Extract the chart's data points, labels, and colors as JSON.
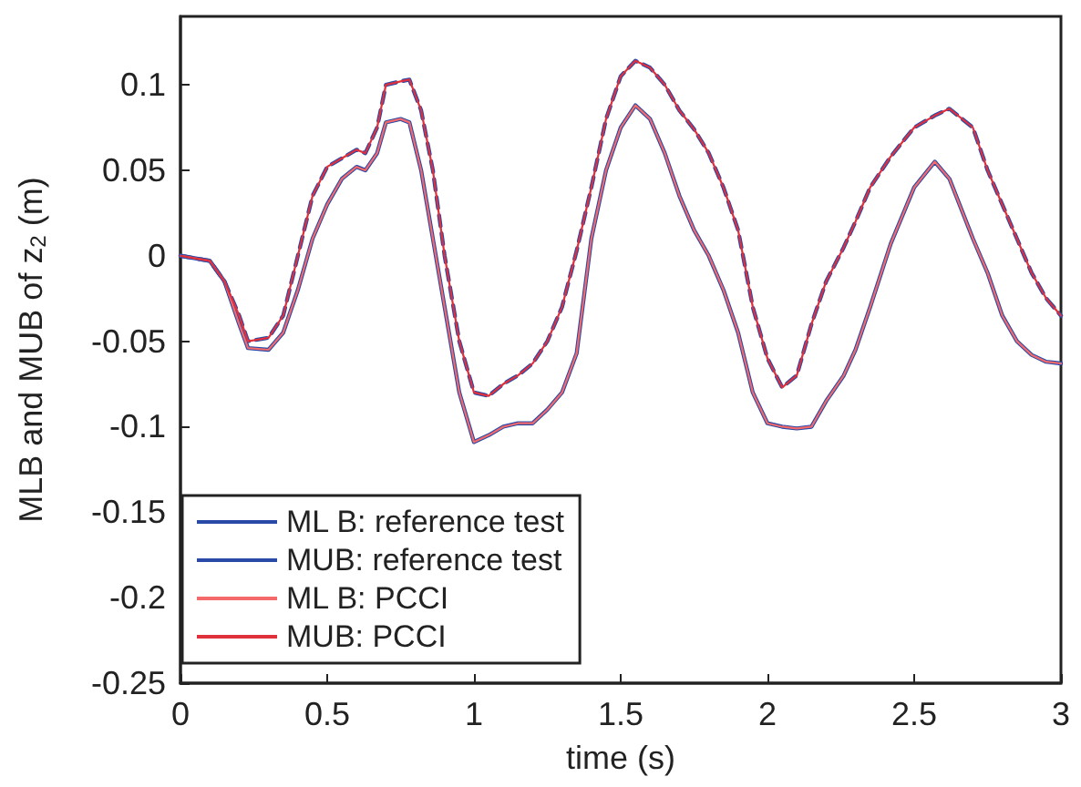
{
  "chart_data": {
    "type": "line",
    "xlabel": "time (s)",
    "ylabel": "MLB and MUB of z$_{2}$ (m)",
    "xlim": [
      0,
      3
    ],
    "xticks": [
      0,
      0.5,
      1,
      1.5,
      2,
      2.5,
      3
    ],
    "ylim": [
      -0.25,
      0.14
    ],
    "yticks": [
      -0.25,
      -0.2,
      -0.15,
      -0.1,
      -0.05,
      0,
      0.05,
      0.1
    ],
    "grid": false,
    "legend": "bottom left",
    "marker": "none",
    "x": [
      0,
      0.1,
      0.15,
      0.2,
      0.23,
      0.3,
      0.35,
      0.4,
      0.45,
      0.5,
      0.55,
      0.6,
      0.63,
      0.67,
      0.7,
      0.75,
      0.78,
      0.82,
      0.86,
      0.9,
      0.95,
      1.0,
      1.05,
      1.1,
      1.15,
      1.2,
      1.25,
      1.3,
      1.35,
      1.4,
      1.45,
      1.5,
      1.55,
      1.6,
      1.65,
      1.7,
      1.75,
      1.8,
      1.85,
      1.9,
      1.95,
      2.0,
      2.05,
      2.1,
      2.15,
      2.2,
      2.26,
      2.3,
      2.35,
      2.42,
      2.5,
      2.57,
      2.62,
      2.7,
      2.75,
      2.8,
      2.85,
      2.9,
      2.95,
      3.0
    ],
    "series": [
      {
        "name": "ML B: reference test",
        "color": "#2a4aa8",
        "line_style": "solid",
        "values": [
          0,
          -0.003,
          -0.015,
          -0.04,
          -0.054,
          -0.055,
          -0.045,
          -0.02,
          0.01,
          0.03,
          0.045,
          0.052,
          0.05,
          0.06,
          0.078,
          0.08,
          0.078,
          0.05,
          0.01,
          -0.03,
          -0.08,
          -0.109,
          -0.105,
          -0.1,
          -0.098,
          -0.098,
          -0.09,
          -0.08,
          -0.057,
          0.01,
          0.05,
          0.075,
          0.088,
          0.08,
          0.06,
          0.035,
          0.015,
          0.0,
          -0.02,
          -0.045,
          -0.08,
          -0.098,
          -0.1,
          -0.101,
          -0.1,
          -0.085,
          -0.07,
          -0.055,
          -0.03,
          0.007,
          0.04,
          0.055,
          0.045,
          0.01,
          -0.01,
          -0.035,
          -0.05,
          -0.058,
          -0.062,
          -0.063
        ]
      },
      {
        "name": "MUB: reference test",
        "color": "#2a4aa8",
        "line_style": "dashed",
        "values": [
          0,
          -0.003,
          -0.015,
          -0.035,
          -0.05,
          -0.048,
          -0.035,
          0.0,
          0.035,
          0.052,
          0.057,
          0.062,
          0.06,
          0.075,
          0.1,
          0.102,
          0.103,
          0.085,
          0.05,
          0.0,
          -0.05,
          -0.08,
          -0.082,
          -0.075,
          -0.07,
          -0.063,
          -0.05,
          -0.03,
          0.003,
          0.04,
          0.08,
          0.105,
          0.114,
          0.11,
          0.1,
          0.085,
          0.074,
          0.06,
          0.04,
          0.015,
          -0.03,
          -0.06,
          -0.077,
          -0.07,
          -0.04,
          -0.015,
          0.005,
          0.02,
          0.04,
          0.058,
          0.075,
          0.082,
          0.086,
          0.075,
          0.05,
          0.03,
          0.01,
          -0.01,
          -0.025,
          -0.035
        ]
      },
      {
        "name": "ML B: PCCI",
        "color": "#f46a6a",
        "line_style": "solid",
        "values": [
          0,
          -0.003,
          -0.015,
          -0.04,
          -0.054,
          -0.055,
          -0.045,
          -0.02,
          0.01,
          0.03,
          0.045,
          0.052,
          0.05,
          0.06,
          0.078,
          0.08,
          0.078,
          0.05,
          0.01,
          -0.03,
          -0.08,
          -0.109,
          -0.105,
          -0.1,
          -0.098,
          -0.098,
          -0.09,
          -0.08,
          -0.057,
          0.01,
          0.05,
          0.075,
          0.088,
          0.08,
          0.06,
          0.035,
          0.015,
          0.0,
          -0.02,
          -0.045,
          -0.08,
          -0.098,
          -0.1,
          -0.101,
          -0.1,
          -0.085,
          -0.07,
          -0.055,
          -0.03,
          0.007,
          0.04,
          0.055,
          0.045,
          0.01,
          -0.01,
          -0.035,
          -0.05,
          -0.058,
          -0.062,
          -0.063
        ]
      },
      {
        "name": "MUB: PCCI",
        "color": "#e0303c",
        "line_style": "solid",
        "values": [
          0,
          -0.003,
          -0.015,
          -0.035,
          -0.05,
          -0.048,
          -0.035,
          0.0,
          0.035,
          0.052,
          0.057,
          0.062,
          0.06,
          0.075,
          0.1,
          0.102,
          0.103,
          0.085,
          0.05,
          0.0,
          -0.05,
          -0.08,
          -0.082,
          -0.075,
          -0.07,
          -0.063,
          -0.05,
          -0.03,
          0.003,
          0.04,
          0.08,
          0.105,
          0.114,
          0.11,
          0.1,
          0.085,
          0.074,
          0.06,
          0.04,
          0.015,
          -0.03,
          -0.06,
          -0.077,
          -0.07,
          -0.04,
          -0.015,
          0.005,
          0.02,
          0.04,
          0.058,
          0.075,
          0.082,
          0.086,
          0.075,
          0.05,
          0.03,
          0.01,
          -0.01,
          -0.025,
          -0.035
        ]
      }
    ]
  }
}
